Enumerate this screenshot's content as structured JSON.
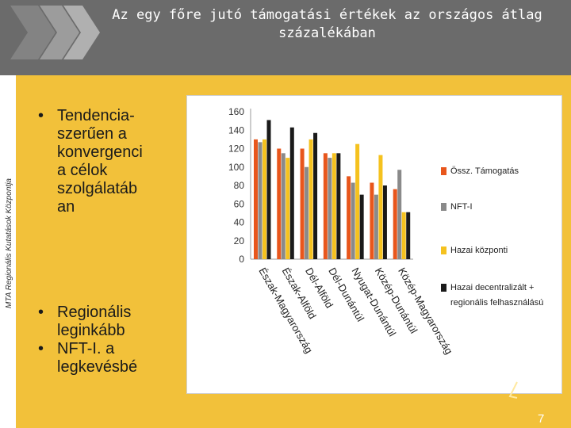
{
  "title": "Az egy főre jutó támogatási értékek az országos átlag százalékában",
  "side_text": "MTA Regionális Kutatások Központja",
  "bullets_top": {
    "lines": [
      "Tendencia-",
      "szerűen a",
      "konvergenci",
      "a célok",
      "szolgálatáb",
      "an"
    ]
  },
  "bullets_bottom": {
    "item1_lines": [
      "Regionális",
      "leginkább"
    ],
    "item2_lines": [
      "NFT-I. a",
      "legkevésbé"
    ]
  },
  "page_number": "7",
  "colors": {
    "header": "#6b6b6b",
    "background": "#f2c13a",
    "series": [
      "#e8561c",
      "#8a8a8a",
      "#f5c21f",
      "#1a1a1a"
    ]
  },
  "chart_data": {
    "type": "bar",
    "title": "",
    "categories": [
      "Észak-Magyarország",
      "Észak-Alföld",
      "Dél-Alföld",
      "Dél-Dunántúl",
      "Nyugat-Dunántúl",
      "Közép-Dunántúl",
      "Közép-Magyarország"
    ],
    "series": [
      {
        "name": "Össz. Támogatás",
        "values": [
          130,
          120,
          120,
          115,
          90,
          83,
          76
        ]
      },
      {
        "name": "NFT-I",
        "values": [
          127,
          115,
          100,
          110,
          83,
          70,
          97
        ]
      },
      {
        "name": "Hazai központi",
        "values": [
          130,
          110,
          130,
          115,
          125,
          113,
          51
        ]
      },
      {
        "name": "Hazai decentralizált + regionális felhasználású",
        "values": [
          151,
          143,
          137,
          115,
          70,
          80,
          51
        ]
      }
    ],
    "yticks": [
      "0",
      "20",
      "40",
      "60",
      "80",
      "100",
      "120",
      "140",
      "160"
    ],
    "ylim": [
      0,
      160
    ],
    "xlabel": "",
    "ylabel": "",
    "legend_position": "right"
  }
}
